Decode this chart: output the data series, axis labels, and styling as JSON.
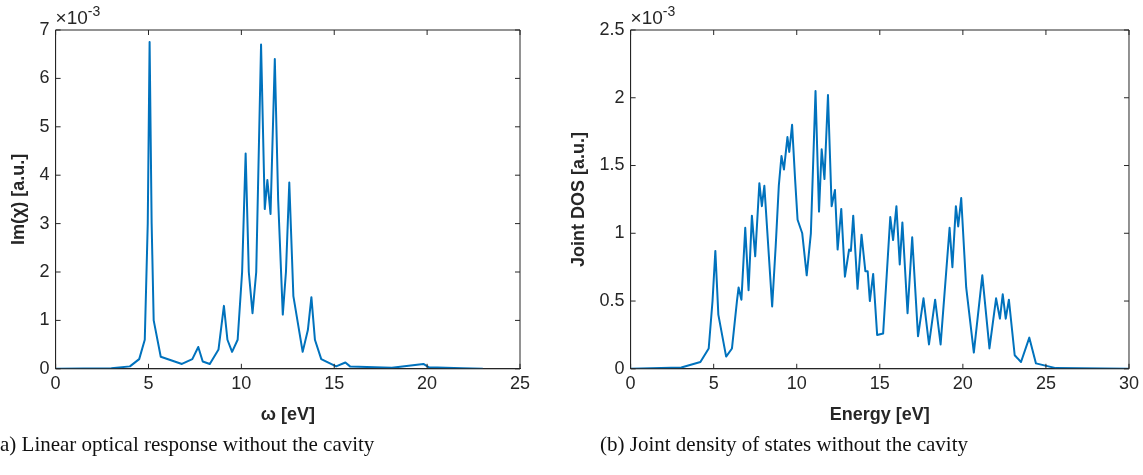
{
  "chart_data": [
    {
      "type": "line",
      "xlabel": "ω [eV]",
      "ylabel": "Im(χ) [a.u.]",
      "xlim": [
        0,
        25
      ],
      "xticks": [
        0,
        5,
        10,
        15,
        20,
        25
      ],
      "ylim": [
        0,
        7
      ],
      "yticks": [
        0,
        1,
        2,
        3,
        4,
        5,
        6,
        7
      ],
      "grid": false,
      "marker": "none",
      "line_style": "solid",
      "annotations": [
        "×10$^{-3}$",
        "a) Linear optical response without the cavity"
      ],
      "x": [
        0,
        3.0,
        4.0,
        4.5,
        4.8,
        4.96,
        5.06,
        5.17,
        5.28,
        5.66,
        6.8,
        7.36,
        7.68,
        7.92,
        8.3,
        8.77,
        9.06,
        9.25,
        9.5,
        9.8,
        10.04,
        10.23,
        10.4,
        10.6,
        10.8,
        11.06,
        11.26,
        11.4,
        11.57,
        11.8,
        11.98,
        12.23,
        12.4,
        12.58,
        12.8,
        13.3,
        13.58,
        13.77,
        13.96,
        14.3,
        15.1,
        15.6,
        15.85,
        18.1,
        19.8,
        20.1,
        21.9,
        23.0
      ],
      "series": [
        {
          "color": "#0072bd",
          "values": [
            0,
            0.01,
            0.05,
            0.2,
            0.6,
            3,
            6.75,
            3,
            1.0,
            0.25,
            0.1,
            0.2,
            0.45,
            0.15,
            0.1,
            0.4,
            1.3,
            0.6,
            0.35,
            0.6,
            2,
            4.45,
            2,
            1.15,
            2,
            6.7,
            3.3,
            3.9,
            3.2,
            6.4,
            3.5,
            1.12,
            2,
            3.85,
            1.5,
            0.35,
            0.8,
            1.48,
            0.6,
            0.2,
            0.05,
            0.13,
            0.05,
            0.02,
            0.1,
            0.03,
            0.01,
            0
          ]
        }
      ]
    },
    {
      "type": "line",
      "xlabel": "Energy [eV]",
      "ylabel": "Joint DOS [a.u.]",
      "xlim": [
        0,
        30
      ],
      "xticks": [
        0,
        5,
        10,
        15,
        20,
        25,
        30
      ],
      "ylim": [
        0,
        2.5
      ],
      "yticks": [
        0,
        0.5,
        1,
        1.5,
        2,
        2.5
      ],
      "grid": false,
      "marker": "none",
      "line_style": "solid",
      "annotations": [
        "×10$^{-3}$",
        "(b) Joint density of states without the cavity"
      ],
      "x": [
        0,
        3.05,
        4.2,
        4.7,
        4.93,
        5.1,
        5.28,
        5.75,
        6.1,
        6.4,
        6.5,
        6.67,
        6.9,
        7.1,
        7.3,
        7.5,
        7.75,
        7.9,
        8.05,
        8.26,
        8.52,
        8.73,
        8.92,
        9.08,
        9.23,
        9.44,
        9.55,
        9.72,
        9.9,
        10.05,
        10.33,
        10.6,
        10.85,
        11.13,
        11.34,
        11.5,
        11.67,
        11.88,
        12.1,
        12.3,
        12.46,
        12.68,
        12.9,
        13.15,
        13.26,
        13.4,
        13.66,
        13.9,
        14.13,
        14.27,
        14.4,
        14.6,
        14.84,
        15.2,
        15.63,
        15.8,
        16.0,
        16.2,
        16.36,
        16.67,
        16.95,
        17.3,
        17.63,
        17.96,
        18.33,
        18.66,
        19.2,
        19.37,
        19.58,
        19.72,
        19.9,
        20.2,
        20.66,
        21.17,
        21.6,
        22.0,
        22.23,
        22.4,
        22.58,
        22.77,
        23.12,
        23.5,
        24.0,
        24.4,
        25.6,
        30
      ],
      "series": [
        {
          "color": "#0072bd",
          "values": [
            0,
            0.01,
            0.05,
            0.15,
            0.5,
            0.87,
            0.4,
            0.09,
            0.15,
            0.5,
            0.6,
            0.51,
            1.04,
            0.58,
            1.13,
            0.83,
            1.37,
            1.2,
            1.35,
            0.95,
            0.46,
            0.9,
            1.35,
            1.57,
            1.47,
            1.71,
            1.6,
            1.8,
            1.4,
            1.1,
            1.0,
            0.69,
            1.0,
            2.05,
            1.16,
            1.62,
            1.4,
            2.02,
            1.2,
            1.32,
            0.88,
            1.18,
            0.68,
            0.88,
            0.87,
            1.13,
            0.59,
            0.99,
            0.72,
            0.72,
            0.5,
            0.7,
            0.25,
            0.26,
            1.12,
            0.95,
            1.2,
            0.77,
            1.08,
            0.41,
            0.97,
            0.24,
            0.52,
            0.18,
            0.51,
            0.18,
            1.04,
            0.75,
            1.2,
            1.05,
            1.26,
            0.6,
            0.12,
            0.69,
            0.15,
            0.52,
            0.37,
            0.55,
            0.37,
            0.51,
            0.1,
            0.05,
            0.23,
            0.04,
            0.005,
            0
          ]
        }
      ]
    }
  ]
}
